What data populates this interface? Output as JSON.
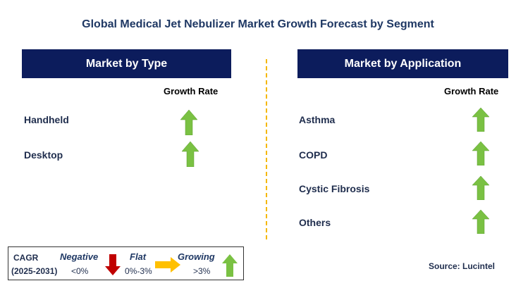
{
  "title": "Global Medical Jet Nebulizer Market Growth Forecast by Segment",
  "left_panel": {
    "header": "Market by Type",
    "growth_rate_label": "Growth Rate",
    "rows": [
      {
        "label": "Handheld",
        "trend": "growing"
      },
      {
        "label": "Desktop",
        "trend": "growing"
      }
    ]
  },
  "right_panel": {
    "header": "Market by Application",
    "growth_rate_label": "Growth Rate",
    "rows": [
      {
        "label": "Asthma",
        "trend": "growing"
      },
      {
        "label": "COPD",
        "trend": "growing"
      },
      {
        "label": "Cystic Fibrosis",
        "trend": "growing"
      },
      {
        "label": "Others",
        "trend": "growing"
      }
    ]
  },
  "legend": {
    "cagr_label": "CAGR",
    "period": "(2025-2031)",
    "negative": {
      "label": "Negative",
      "range": "<0%",
      "color": "#c00000"
    },
    "flat": {
      "label": "Flat",
      "range": "0%-3%",
      "color": "#ffc000"
    },
    "growing": {
      "label": "Growing",
      "range": ">3%",
      "color": "#7ac143"
    }
  },
  "source": "Source: Lucintel",
  "colors": {
    "header_bg": "#0c1c5c",
    "title": "#1f3864",
    "divider": "#f5b800",
    "up_arrow": "#7ac143"
  }
}
